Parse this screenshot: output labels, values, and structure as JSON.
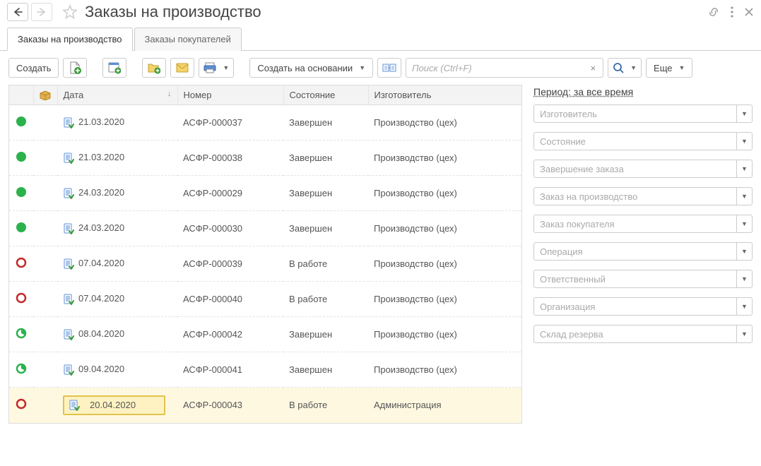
{
  "title": "Заказы на производство",
  "tabs": [
    {
      "label": "Заказы на производство",
      "active": true
    },
    {
      "label": "Заказы покупателей",
      "active": false
    }
  ],
  "toolbar": {
    "create_label": "Создать",
    "create_on_basis_label": "Создать на основании",
    "more_label": "Еще",
    "search_placeholder": "Поиск (Ctrl+F)"
  },
  "columns": {
    "date": "Дата",
    "number": "Номер",
    "state": "Состояние",
    "manufacturer": "Изготовитель"
  },
  "rows": [
    {
      "status": "done",
      "date": "21.03.2020",
      "number": "АСФР-000037",
      "state": "Завершен",
      "manufacturer": "Производство (цех)",
      "selected": false
    },
    {
      "status": "done",
      "date": "21.03.2020",
      "number": "АСФР-000038",
      "state": "Завершен",
      "manufacturer": "Производство (цех)",
      "selected": false
    },
    {
      "status": "done",
      "date": "24.03.2020",
      "number": "АСФР-000029",
      "state": "Завершен",
      "manufacturer": "Производство (цех)",
      "selected": false
    },
    {
      "status": "done",
      "date": "24.03.2020",
      "number": "АСФР-000030",
      "state": "Завершен",
      "manufacturer": "Производство (цех)",
      "selected": false
    },
    {
      "status": "open",
      "date": "07.04.2020",
      "number": "АСФР-000039",
      "state": "В работе",
      "manufacturer": "Производство (цех)",
      "selected": false
    },
    {
      "status": "open",
      "date": "07.04.2020",
      "number": "АСФР-000040",
      "state": "В работе",
      "manufacturer": "Производство (цех)",
      "selected": false
    },
    {
      "status": "partial",
      "date": "08.04.2020",
      "number": "АСФР-000042",
      "state": "Завершен",
      "manufacturer": "Производство (цех)",
      "selected": false
    },
    {
      "status": "partial",
      "date": "09.04.2020",
      "number": "АСФР-000041",
      "state": "Завершен",
      "manufacturer": "Производство (цех)",
      "selected": false
    },
    {
      "status": "open",
      "date": "20.04.2020",
      "number": "АСФР-000043",
      "state": "В работе",
      "manufacturer": "Администрация",
      "selected": true
    }
  ],
  "status_colors": {
    "done": "#2bb24c",
    "open_stroke": "#c62828",
    "partial_fill": "#2bb24c",
    "partial_stroke": "#2bb24c"
  },
  "side": {
    "period_label": "Период: за все время",
    "filters": [
      {
        "placeholder": "Изготовитель"
      },
      {
        "placeholder": "Состояние"
      },
      {
        "placeholder": "Завершение заказа"
      },
      {
        "placeholder": "Заказ на производство"
      },
      {
        "placeholder": "Заказ покупателя"
      },
      {
        "placeholder": "Операция"
      },
      {
        "placeholder": "Ответственный"
      },
      {
        "placeholder": "Организация"
      },
      {
        "placeholder": "Склад резерва"
      }
    ]
  }
}
